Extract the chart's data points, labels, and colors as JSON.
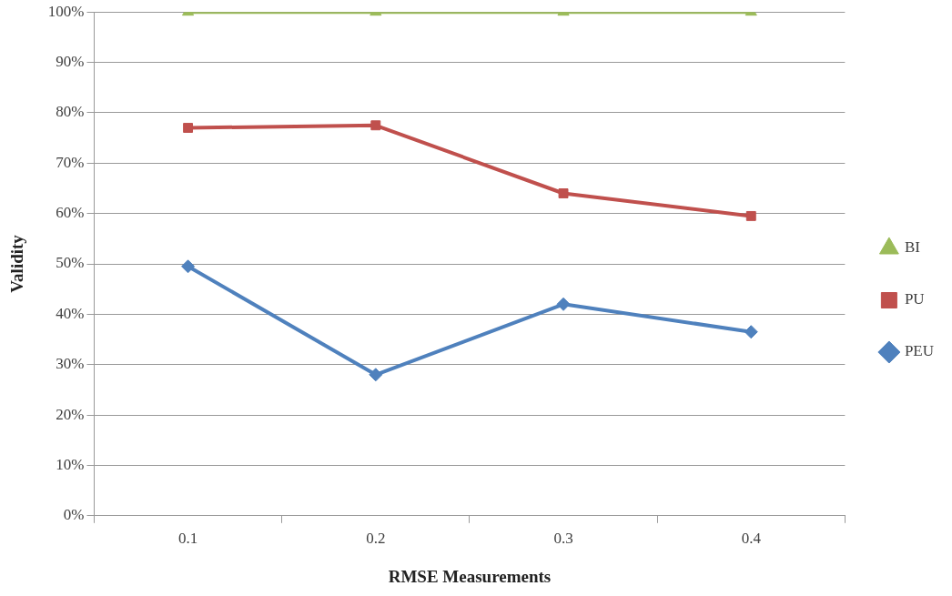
{
  "chart_data": {
    "type": "line",
    "xlabel": "RMSE Measurements",
    "ylabel": "Validity",
    "categories": [
      "0.1",
      "0.2",
      "0.3",
      "0.4"
    ],
    "series": [
      {
        "name": "BI",
        "color": "#9bbb59",
        "marker": "triangle",
        "values": [
          100,
          100,
          100,
          100
        ]
      },
      {
        "name": "PU",
        "color": "#c0504d",
        "marker": "square",
        "values": [
          77,
          77.5,
          64,
          59.5
        ]
      },
      {
        "name": "PEU",
        "color": "#4f81bd",
        "marker": "diamond",
        "values": [
          49.5,
          28,
          42,
          36.5
        ]
      }
    ],
    "ylim": [
      0,
      100
    ],
    "yticks": [
      {
        "value": 0,
        "label": "0%"
      },
      {
        "value": 10,
        "label": "10%"
      },
      {
        "value": 20,
        "label": "20%"
      },
      {
        "value": 30,
        "label": "30%"
      },
      {
        "value": 40,
        "label": "40%"
      },
      {
        "value": 50,
        "label": "50%"
      },
      {
        "value": 60,
        "label": "60%"
      },
      {
        "value": 70,
        "label": "70%"
      },
      {
        "value": 80,
        "label": "80%"
      },
      {
        "value": 90,
        "label": "90%"
      },
      {
        "value": 100,
        "label": "100%"
      }
    ],
    "grid": "y",
    "legend": "right",
    "line_style": "solid"
  }
}
